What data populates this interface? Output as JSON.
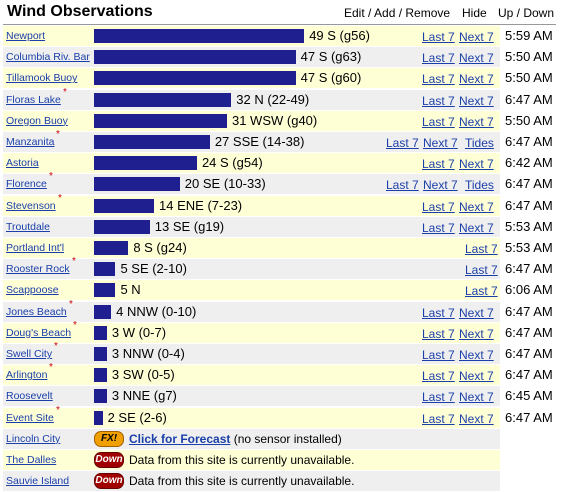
{
  "header": {
    "title": "Wind Observations",
    "edit_add_remove": "Edit / Add / Remove",
    "hide": "Hide",
    "up_down": "Up / Down"
  },
  "colors": {
    "bar": "#1f1f8f",
    "row_odd": "#ffffd6",
    "row_even": "#efefef",
    "link": "#1a3fa8",
    "star": "#cc0000"
  },
  "stations": [
    {
      "name": "Newport",
      "star": false,
      "bar_mph": 49,
      "reading": "49 S (g56)",
      "last7": "Last 7",
      "next7": "Next 7",
      "tides": "",
      "time": "5:59 AM"
    },
    {
      "name": "Columbia Riv. Bar",
      "star": false,
      "bar_mph": 47,
      "reading": "47 S (g63)",
      "last7": "Last 7",
      "next7": "Next 7",
      "tides": "",
      "time": "5:50 AM"
    },
    {
      "name": "Tillamook Buoy",
      "star": false,
      "bar_mph": 47,
      "reading": "47 S (g60)",
      "last7": "Last 7",
      "next7": "Next 7",
      "tides": "",
      "time": "5:50 AM"
    },
    {
      "name": "Floras Lake",
      "star": true,
      "bar_mph": 32,
      "reading": "32 N (22-49)",
      "last7": "Last 7",
      "next7": "Next 7",
      "tides": "",
      "time": "6:47 AM"
    },
    {
      "name": "Oregon Buoy",
      "star": false,
      "bar_mph": 31,
      "reading": "31 WSW (g40)",
      "last7": "Last 7",
      "next7": "Next 7",
      "tides": "",
      "time": "5:50 AM"
    },
    {
      "name": "Manzanita",
      "star": true,
      "bar_mph": 27,
      "reading": "27 SSE (14-38)",
      "last7": "Last 7",
      "next7": "Next 7",
      "tides": "Tides",
      "time": "6:47 AM"
    },
    {
      "name": "Astoria",
      "star": false,
      "bar_mph": 24,
      "reading": "24 S (g54)",
      "last7": "Last 7",
      "next7": "Next 7",
      "tides": "",
      "time": "6:42 AM"
    },
    {
      "name": "Florence",
      "star": true,
      "bar_mph": 20,
      "reading": "20 SE (10-33)",
      "last7": "Last 7",
      "next7": "Next 7",
      "tides": "Tides",
      "time": "6:47 AM"
    },
    {
      "name": "Stevenson",
      "star": true,
      "bar_mph": 14,
      "reading": "14 ENE (7-23)",
      "last7": "Last 7",
      "next7": "Next 7",
      "tides": "",
      "time": "6:47 AM"
    },
    {
      "name": "Troutdale",
      "star": false,
      "bar_mph": 13,
      "reading": "13 SE (g19)",
      "last7": "Last 7",
      "next7": "Next 7",
      "tides": "",
      "time": "5:53 AM"
    },
    {
      "name": "Portland Int'l",
      "star": false,
      "bar_mph": 8,
      "reading": "8 S (g24)",
      "last7": "Last 7",
      "next7": "",
      "tides": "",
      "time": "5:53 AM"
    },
    {
      "name": "Rooster Rock",
      "star": true,
      "bar_mph": 5,
      "reading": "5 SE (2-10)",
      "last7": "Last 7",
      "next7": "",
      "tides": "",
      "time": "6:47 AM"
    },
    {
      "name": "Scappoose",
      "star": false,
      "bar_mph": 5,
      "reading": "5 N",
      "last7": "Last 7",
      "next7": "",
      "tides": "",
      "time": "6:06 AM"
    },
    {
      "name": "Jones Beach",
      "star": true,
      "bar_mph": 4,
      "reading": "4 NNW (0-10)",
      "last7": "Last 7",
      "next7": "Next 7",
      "tides": "",
      "time": "6:47 AM"
    },
    {
      "name": "Doug's Beach",
      "star": true,
      "bar_mph": 3,
      "reading": "3 W (0-7)",
      "last7": "Last 7",
      "next7": "Next 7",
      "tides": "",
      "time": "6:47 AM"
    },
    {
      "name": "Swell City",
      "star": true,
      "bar_mph": 3,
      "reading": "3 NNW (0-4)",
      "last7": "Last 7",
      "next7": "Next 7",
      "tides": "",
      "time": "6:47 AM"
    },
    {
      "name": "Arlington",
      "star": true,
      "bar_mph": 3,
      "reading": "3 SW (0-5)",
      "last7": "Last 7",
      "next7": "Next 7",
      "tides": "",
      "time": "6:47 AM"
    },
    {
      "name": "Roosevelt",
      "star": false,
      "bar_mph": 3,
      "reading": "3 NNE (g7)",
      "last7": "Last 7",
      "next7": "Next 7",
      "tides": "",
      "time": "6:45 AM"
    },
    {
      "name": "Event Site",
      "star": true,
      "bar_mph": 2,
      "reading": "2 SE (2-6)",
      "last7": "Last 7",
      "next7": "Next 7",
      "tides": "",
      "time": "6:47 AM"
    }
  ],
  "special": [
    {
      "name": "Lincoln City",
      "badge": "FX!",
      "badge_type": "fx",
      "link": "Click for Forecast",
      "text": " (no sensor installed)"
    },
    {
      "name": "The Dalles",
      "badge": "Down",
      "badge_type": "down",
      "link": "",
      "text": "Data from this site is currently unavailable."
    },
    {
      "name": "Sauvie Island",
      "badge": "Down",
      "badge_type": "down",
      "link": "",
      "text": "Data from this site is currently unavailable."
    }
  ]
}
